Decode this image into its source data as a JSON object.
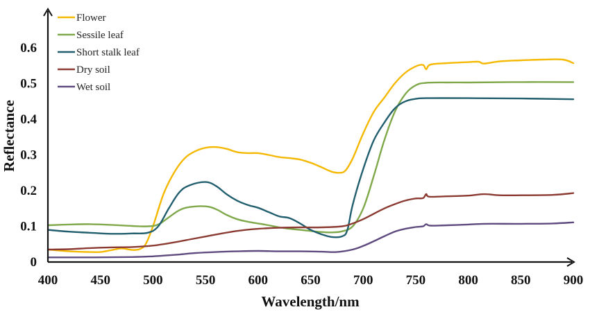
{
  "chart_data": {
    "type": "line",
    "title": "",
    "xlabel": "Wavelength/nm",
    "ylabel": "Reflectance",
    "xlim": [
      400,
      900
    ],
    "ylim": [
      0,
      0.6
    ],
    "x_ticks": [
      "400",
      "450",
      "500",
      "550",
      "600",
      "650",
      "700",
      "750",
      "800",
      "850",
      "900"
    ],
    "y_ticks": [
      "0",
      "0.1",
      "0.2",
      "0.3",
      "0.4",
      "0.5",
      "0.6"
    ],
    "grid": false,
    "legend_position": "top-left",
    "series": [
      {
        "name": "Flower",
        "color": "#F5B800",
        "points": [
          [
            400,
            0.035
          ],
          [
            420,
            0.03
          ],
          [
            440,
            0.028
          ],
          [
            450,
            0.028
          ],
          [
            460,
            0.033
          ],
          [
            470,
            0.038
          ],
          [
            480,
            0.034
          ],
          [
            487,
            0.036
          ],
          [
            493,
            0.05
          ],
          [
            500,
            0.1
          ],
          [
            510,
            0.19
          ],
          [
            520,
            0.25
          ],
          [
            530,
            0.29
          ],
          [
            540,
            0.31
          ],
          [
            550,
            0.32
          ],
          [
            560,
            0.322
          ],
          [
            570,
            0.317
          ],
          [
            580,
            0.308
          ],
          [
            590,
            0.305
          ],
          [
            600,
            0.305
          ],
          [
            610,
            0.3
          ],
          [
            620,
            0.294
          ],
          [
            630,
            0.291
          ],
          [
            640,
            0.287
          ],
          [
            650,
            0.278
          ],
          [
            660,
            0.266
          ],
          [
            670,
            0.253
          ],
          [
            677,
            0.25
          ],
          [
            683,
            0.256
          ],
          [
            690,
            0.29
          ],
          [
            700,
            0.36
          ],
          [
            710,
            0.42
          ],
          [
            720,
            0.46
          ],
          [
            730,
            0.5
          ],
          [
            740,
            0.53
          ],
          [
            750,
            0.548
          ],
          [
            757,
            0.552
          ],
          [
            760,
            0.54
          ],
          [
            764,
            0.553
          ],
          [
            780,
            0.557
          ],
          [
            800,
            0.56
          ],
          [
            810,
            0.561
          ],
          [
            815,
            0.556
          ],
          [
            830,
            0.562
          ],
          [
            850,
            0.565
          ],
          [
            870,
            0.567
          ],
          [
            890,
            0.567
          ],
          [
            900,
            0.557
          ]
        ]
      },
      {
        "name": "Sessile leaf",
        "color": "#7FA84A",
        "points": [
          [
            400,
            0.103
          ],
          [
            420,
            0.105
          ],
          [
            440,
            0.106
          ],
          [
            460,
            0.104
          ],
          [
            480,
            0.101
          ],
          [
            495,
            0.1
          ],
          [
            505,
            0.105
          ],
          [
            515,
            0.125
          ],
          [
            525,
            0.145
          ],
          [
            535,
            0.154
          ],
          [
            550,
            0.156
          ],
          [
            560,
            0.148
          ],
          [
            570,
            0.132
          ],
          [
            580,
            0.12
          ],
          [
            590,
            0.113
          ],
          [
            600,
            0.108
          ],
          [
            610,
            0.103
          ],
          [
            620,
            0.097
          ],
          [
            630,
            0.093
          ],
          [
            640,
            0.09
          ],
          [
            650,
            0.087
          ],
          [
            660,
            0.084
          ],
          [
            670,
            0.083
          ],
          [
            680,
            0.086
          ],
          [
            690,
            0.1
          ],
          [
            700,
            0.15
          ],
          [
            710,
            0.24
          ],
          [
            720,
            0.34
          ],
          [
            730,
            0.42
          ],
          [
            740,
            0.47
          ],
          [
            750,
            0.495
          ],
          [
            760,
            0.502
          ],
          [
            780,
            0.503
          ],
          [
            800,
            0.503
          ],
          [
            850,
            0.504
          ],
          [
            900,
            0.504
          ]
        ]
      },
      {
        "name": "Short stalk leaf",
        "color": "#215E6E",
        "points": [
          [
            400,
            0.09
          ],
          [
            420,
            0.085
          ],
          [
            440,
            0.082
          ],
          [
            460,
            0.079
          ],
          [
            480,
            0.08
          ],
          [
            495,
            0.082
          ],
          [
            505,
            0.1
          ],
          [
            515,
            0.15
          ],
          [
            525,
            0.195
          ],
          [
            535,
            0.215
          ],
          [
            550,
            0.224
          ],
          [
            560,
            0.213
          ],
          [
            570,
            0.19
          ],
          [
            580,
            0.172
          ],
          [
            590,
            0.16
          ],
          [
            600,
            0.152
          ],
          [
            610,
            0.14
          ],
          [
            620,
            0.128
          ],
          [
            630,
            0.123
          ],
          [
            640,
            0.108
          ],
          [
            650,
            0.09
          ],
          [
            660,
            0.078
          ],
          [
            670,
            0.07
          ],
          [
            680,
            0.072
          ],
          [
            685,
            0.09
          ],
          [
            690,
            0.16
          ],
          [
            700,
            0.26
          ],
          [
            710,
            0.34
          ],
          [
            720,
            0.39
          ],
          [
            730,
            0.43
          ],
          [
            740,
            0.45
          ],
          [
            750,
            0.457
          ],
          [
            760,
            0.459
          ],
          [
            800,
            0.459
          ],
          [
            850,
            0.458
          ],
          [
            900,
            0.456
          ]
        ]
      },
      {
        "name": "Dry soil",
        "color": "#8B3A32",
        "points": [
          [
            400,
            0.035
          ],
          [
            420,
            0.036
          ],
          [
            440,
            0.039
          ],
          [
            460,
            0.041
          ],
          [
            480,
            0.042
          ],
          [
            500,
            0.046
          ],
          [
            520,
            0.055
          ],
          [
            540,
            0.066
          ],
          [
            560,
            0.077
          ],
          [
            580,
            0.087
          ],
          [
            600,
            0.093
          ],
          [
            620,
            0.096
          ],
          [
            640,
            0.097
          ],
          [
            660,
            0.097
          ],
          [
            680,
            0.1
          ],
          [
            690,
            0.108
          ],
          [
            700,
            0.12
          ],
          [
            710,
            0.135
          ],
          [
            720,
            0.15
          ],
          [
            730,
            0.162
          ],
          [
            740,
            0.172
          ],
          [
            750,
            0.178
          ],
          [
            757,
            0.179
          ],
          [
            760,
            0.19
          ],
          [
            763,
            0.183
          ],
          [
            780,
            0.184
          ],
          [
            800,
            0.186
          ],
          [
            815,
            0.19
          ],
          [
            830,
            0.187
          ],
          [
            850,
            0.187
          ],
          [
            880,
            0.188
          ],
          [
            900,
            0.193
          ]
        ]
      },
      {
        "name": "Wet soil",
        "color": "#5E4A7E",
        "points": [
          [
            400,
            0.013
          ],
          [
            440,
            0.013
          ],
          [
            480,
            0.014
          ],
          [
            500,
            0.016
          ],
          [
            520,
            0.02
          ],
          [
            540,
            0.025
          ],
          [
            560,
            0.028
          ],
          [
            580,
            0.03
          ],
          [
            600,
            0.031
          ],
          [
            620,
            0.03
          ],
          [
            640,
            0.03
          ],
          [
            660,
            0.029
          ],
          [
            675,
            0.028
          ],
          [
            690,
            0.035
          ],
          [
            700,
            0.045
          ],
          [
            710,
            0.058
          ],
          [
            720,
            0.072
          ],
          [
            730,
            0.085
          ],
          [
            740,
            0.093
          ],
          [
            750,
            0.098
          ],
          [
            757,
            0.1
          ],
          [
            760,
            0.106
          ],
          [
            764,
            0.102
          ],
          [
            780,
            0.103
          ],
          [
            800,
            0.105
          ],
          [
            815,
            0.107
          ],
          [
            850,
            0.107
          ],
          [
            880,
            0.108
          ],
          [
            900,
            0.111
          ]
        ]
      }
    ]
  }
}
